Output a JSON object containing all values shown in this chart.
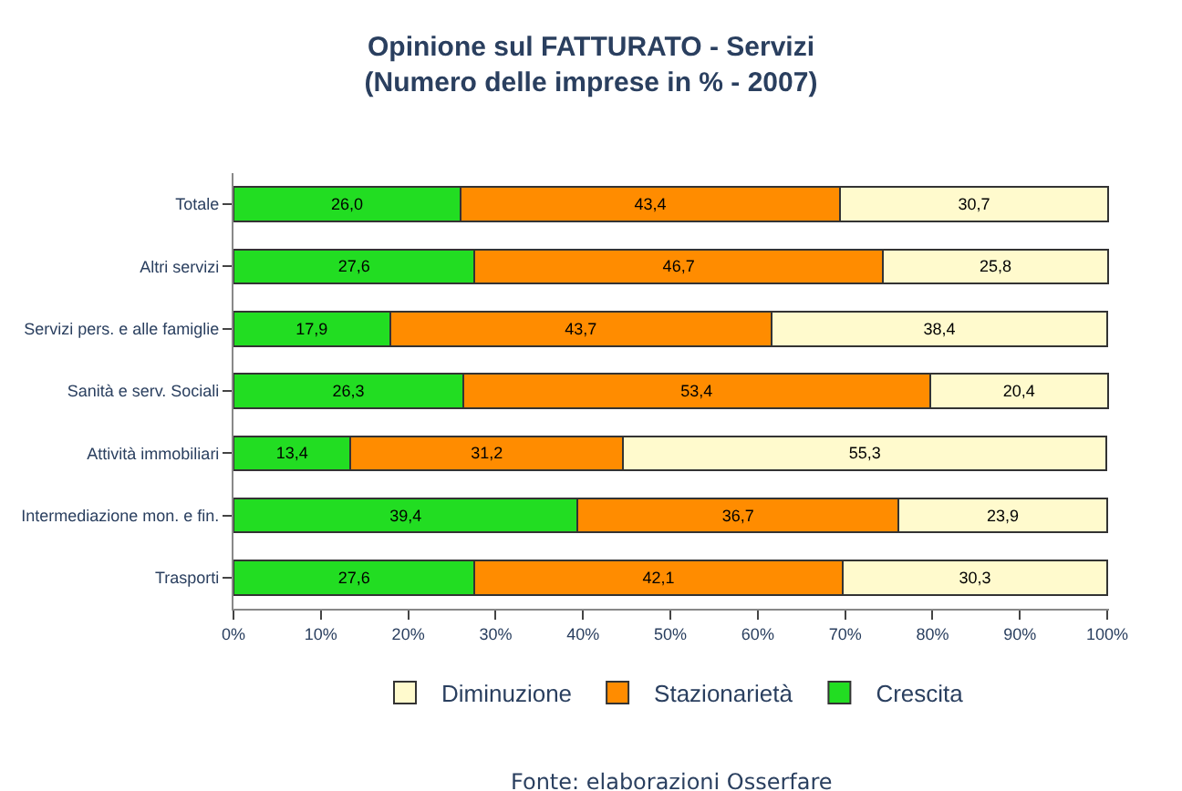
{
  "chart_data": {
    "type": "bar",
    "orientation": "horizontal",
    "stacked": true,
    "title": "Opinione sul FATTURATO - Servizi",
    "subtitle": "(Numero delle imprese in % - 2007)",
    "categories": [
      "Totale",
      "Altri servizi",
      "Servizi pers. e alle famiglie",
      "Sanità e serv. Sociali",
      "Attività immobiliari",
      "Intermediazione mon. e fin.",
      "Trasporti"
    ],
    "series": [
      {
        "name": "Crescita",
        "color": "#22dd22",
        "values": [
          26.0,
          27.6,
          17.9,
          26.3,
          13.4,
          39.4,
          27.6
        ],
        "value_labels": [
          "26,0",
          "27,6",
          "17,9",
          "26,3",
          "13,4",
          "39,4",
          "27,6"
        ]
      },
      {
        "name": "Stazionarietà",
        "color": "#ff8c00",
        "values": [
          43.4,
          46.7,
          43.7,
          53.4,
          31.2,
          36.7,
          42.1
        ],
        "value_labels": [
          "43,4",
          "46,7",
          "43,7",
          "53,4",
          "31,2",
          "36,7",
          "42,1"
        ]
      },
      {
        "name": "Diminuzione",
        "color": "#fffacd",
        "values": [
          30.7,
          25.8,
          38.4,
          20.4,
          55.3,
          23.9,
          30.3
        ],
        "value_labels": [
          "30,7",
          "25,8",
          "38,4",
          "20,4",
          "55,3",
          "23,9",
          "30,3"
        ]
      }
    ],
    "xlim": [
      0,
      100.2
    ],
    "xticks": [
      {
        "value": 0,
        "label": "0%"
      },
      {
        "value": 10,
        "label": "10%"
      },
      {
        "value": 20,
        "label": "20%"
      },
      {
        "value": 30,
        "label": "30%"
      },
      {
        "value": 40,
        "label": "40%"
      },
      {
        "value": 50,
        "label": "50%"
      },
      {
        "value": 60,
        "label": "60%"
      },
      {
        "value": 70,
        "label": "70%"
      },
      {
        "value": 80,
        "label": "80%"
      },
      {
        "value": 90,
        "label": "90%"
      },
      {
        "value": 100,
        "label": "100%"
      }
    ],
    "legend": "bottom",
    "grid": false,
    "annotations": [
      "Fonte: elaborazioni Osserfare"
    ]
  }
}
